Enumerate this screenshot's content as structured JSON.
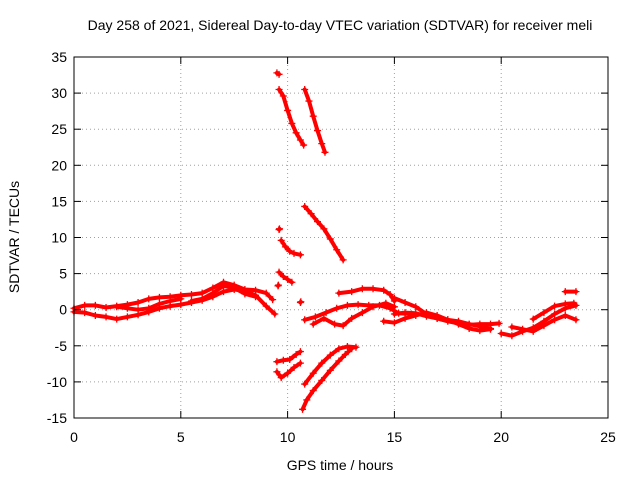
{
  "chart_data": {
    "type": "scatter",
    "title": "Day 258 of 2021, Sidereal Day-to-day VTEC variation (SDTVAR) for receiver meli",
    "xlabel": "GPS time / hours",
    "ylabel": "SDTVAR / TECUs",
    "xlim": [
      0,
      25
    ],
    "ylim": [
      -15,
      35
    ],
    "xticks": [
      0,
      5,
      10,
      15,
      20,
      25
    ],
    "yticks": [
      -15,
      -10,
      -5,
      0,
      5,
      10,
      15,
      20,
      25,
      30,
      35
    ],
    "grid": true,
    "legend": "none",
    "marker": "+",
    "color": "#ff0000",
    "tracks": [
      {
        "name": "track-1",
        "points": [
          [
            0.0,
            0.2
          ],
          [
            0.5,
            0.6
          ],
          [
            1.0,
            0.6
          ],
          [
            1.5,
            0.3
          ],
          [
            2.0,
            0.5
          ],
          [
            2.5,
            0.7
          ],
          [
            3.0,
            1.0
          ],
          [
            3.5,
            1.5
          ],
          [
            4.0,
            1.7
          ],
          [
            4.5,
            1.8
          ],
          [
            5.0,
            2.0
          ],
          [
            5.5,
            2.1
          ],
          [
            6.0,
            2.3
          ],
          [
            6.5,
            3.0
          ],
          [
            7.0,
            3.8
          ],
          [
            7.5,
            3.4
          ],
          [
            8.0,
            2.8
          ],
          [
            8.5,
            2.7
          ],
          [
            9.0,
            2.3
          ],
          [
            9.3,
            1.4
          ]
        ]
      },
      {
        "name": "track-2",
        "points": [
          [
            0.0,
            -0.3
          ],
          [
            0.5,
            -0.4
          ],
          [
            1.0,
            -0.8
          ],
          [
            1.5,
            -1.0
          ],
          [
            2.0,
            -1.3
          ],
          [
            2.5,
            -1.0
          ],
          [
            3.0,
            -0.7
          ],
          [
            3.5,
            -0.3
          ],
          [
            4.0,
            0.2
          ],
          [
            4.5,
            0.5
          ],
          [
            5.0,
            0.7
          ],
          [
            5.5,
            1.0
          ],
          [
            6.0,
            1.3
          ],
          [
            6.5,
            1.8
          ],
          [
            7.0,
            2.5
          ],
          [
            7.5,
            2.8
          ],
          [
            8.0,
            2.6
          ],
          [
            8.5,
            2.0
          ],
          [
            9.0,
            0.5
          ],
          [
            9.4,
            -0.6
          ]
        ]
      },
      {
        "name": "track-3",
        "points": [
          [
            2.0,
            0.4
          ],
          [
            2.5,
            0.2
          ],
          [
            3.0,
            0.0
          ],
          [
            3.5,
            0.2
          ],
          [
            4.0,
            0.8
          ],
          [
            4.5,
            1.2
          ],
          [
            5.0,
            1.5
          ]
        ]
      },
      {
        "name": "track-4",
        "points": [
          [
            5.5,
            1.2
          ],
          [
            6.0,
            1.5
          ],
          [
            6.5,
            2.3
          ],
          [
            7.0,
            3.3
          ],
          [
            7.5,
            3.0
          ],
          [
            8.0,
            2.2
          ],
          [
            8.5,
            1.8
          ]
        ]
      },
      {
        "name": "track-5",
        "points": [
          [
            9.5,
            32.8
          ],
          [
            9.6,
            32.6
          ]
        ]
      },
      {
        "name": "track-6",
        "points": [
          [
            9.6,
            30.5
          ],
          [
            9.8,
            29.6
          ],
          [
            10.0,
            27.6
          ],
          [
            10.2,
            25.8
          ],
          [
            10.4,
            24.5
          ],
          [
            10.6,
            23.5
          ],
          [
            10.75,
            22.8
          ]
        ]
      },
      {
        "name": "track-7",
        "points": [
          [
            10.8,
            30.5
          ],
          [
            11.0,
            28.9
          ],
          [
            11.2,
            26.8
          ],
          [
            11.4,
            24.8
          ],
          [
            11.6,
            23.0
          ],
          [
            11.75,
            21.8
          ]
        ]
      },
      {
        "name": "track-8",
        "points": [
          [
            9.6,
            11.1
          ],
          [
            9.62,
            11.2
          ]
        ]
      },
      {
        "name": "track-9",
        "points": [
          [
            9.7,
            9.6
          ],
          [
            9.9,
            8.7
          ],
          [
            10.1,
            8.1
          ],
          [
            10.3,
            7.8
          ],
          [
            10.6,
            7.6
          ]
        ]
      },
      {
        "name": "track-10",
        "points": [
          [
            10.8,
            14.3
          ],
          [
            11.1,
            13.3
          ],
          [
            11.4,
            12.2
          ],
          [
            11.7,
            11.2
          ],
          [
            12.0,
            9.8
          ],
          [
            12.3,
            8.3
          ],
          [
            12.6,
            6.9
          ]
        ]
      },
      {
        "name": "track-11",
        "points": [
          [
            9.6,
            5.2
          ],
          [
            9.8,
            4.6
          ],
          [
            10.0,
            4.2
          ],
          [
            10.2,
            3.8
          ]
        ]
      },
      {
        "name": "track-12",
        "points": [
          [
            9.55,
            3.3
          ],
          [
            9.57,
            3.4
          ]
        ]
      },
      {
        "name": "track-13",
        "points": [
          [
            10.6,
            1.0
          ],
          [
            10.62,
            1.1
          ]
        ]
      },
      {
        "name": "track-14",
        "points": [
          [
            10.8,
            -1.4
          ],
          [
            11.3,
            -1.0
          ],
          [
            11.8,
            -0.4
          ],
          [
            12.3,
            0.2
          ],
          [
            12.8,
            0.6
          ],
          [
            13.3,
            0.7
          ],
          [
            13.8,
            0.6
          ],
          [
            14.3,
            0.6
          ],
          [
            14.8,
            0.2
          ],
          [
            15.2,
            -0.5
          ],
          [
            15.8,
            -0.6
          ]
        ]
      },
      {
        "name": "track-15",
        "points": [
          [
            11.2,
            -2.0
          ],
          [
            11.7,
            -1.2
          ],
          [
            12.2,
            -2.0
          ],
          [
            12.6,
            -2.2
          ],
          [
            13.0,
            -1.2
          ],
          [
            13.5,
            -0.4
          ],
          [
            14.0,
            0.4
          ],
          [
            14.6,
            0.9
          ],
          [
            15.0,
            0.4
          ]
        ]
      },
      {
        "name": "track-16",
        "points": [
          [
            12.4,
            2.3
          ],
          [
            13.0,
            2.5
          ],
          [
            13.5,
            2.9
          ],
          [
            14.0,
            2.9
          ],
          [
            14.5,
            2.7
          ],
          [
            14.8,
            2.1
          ],
          [
            15.0,
            1.2
          ]
        ]
      },
      {
        "name": "track-17",
        "points": [
          [
            9.5,
            -7.2
          ],
          [
            9.8,
            -7.0
          ],
          [
            10.1,
            -6.9
          ],
          [
            10.4,
            -6.2
          ],
          [
            10.6,
            -5.8
          ]
        ]
      },
      {
        "name": "track-18",
        "points": [
          [
            9.5,
            -8.6
          ],
          [
            9.7,
            -9.4
          ],
          [
            10.0,
            -8.8
          ],
          [
            10.3,
            -8.0
          ],
          [
            10.6,
            -7.4
          ]
        ]
      },
      {
        "name": "track-19",
        "points": [
          [
            10.7,
            -13.8
          ],
          [
            10.9,
            -12.5
          ],
          [
            11.2,
            -11.2
          ],
          [
            11.6,
            -9.8
          ],
          [
            12.0,
            -8.4
          ],
          [
            12.4,
            -7.1
          ],
          [
            12.7,
            -6.2
          ],
          [
            13.0,
            -5.4
          ]
        ]
      },
      {
        "name": "track-20",
        "points": [
          [
            10.8,
            -10.3
          ],
          [
            11.2,
            -8.8
          ],
          [
            11.6,
            -7.4
          ],
          [
            12.0,
            -6.3
          ],
          [
            12.4,
            -5.4
          ],
          [
            12.8,
            -5.1
          ],
          [
            13.2,
            -5.2
          ]
        ]
      },
      {
        "name": "track-21",
        "points": [
          [
            15.0,
            -0.6
          ],
          [
            15.5,
            -0.4
          ],
          [
            16.0,
            -0.5
          ],
          [
            16.5,
            -0.9
          ],
          [
            17.0,
            -1.2
          ],
          [
            17.5,
            -1.4
          ],
          [
            18.0,
            -1.6
          ],
          [
            18.5,
            -2.0
          ],
          [
            19.0,
            -2.3
          ],
          [
            19.5,
            -2.6
          ]
        ]
      },
      {
        "name": "track-22",
        "points": [
          [
            14.5,
            -1.6
          ],
          [
            15.0,
            -1.8
          ],
          [
            15.5,
            -1.2
          ],
          [
            16.0,
            -0.8
          ],
          [
            16.5,
            -0.4
          ],
          [
            17.0,
            -0.8
          ],
          [
            17.5,
            -1.4
          ],
          [
            18.0,
            -2.0
          ],
          [
            18.5,
            -2.6
          ],
          [
            19.0,
            -2.9
          ],
          [
            19.5,
            -2.7
          ]
        ]
      },
      {
        "name": "track-23",
        "points": [
          [
            15.0,
            1.6
          ],
          [
            15.5,
            1.0
          ],
          [
            16.0,
            0.4
          ],
          [
            16.5,
            -0.6
          ],
          [
            17.0,
            -1.2
          ],
          [
            17.5,
            -1.6
          ],
          [
            18.0,
            -1.9
          ],
          [
            18.5,
            -2.1
          ],
          [
            19.0,
            -2.0
          ],
          [
            19.5,
            -2.0
          ],
          [
            19.9,
            -1.9
          ]
        ]
      },
      {
        "name": "track-24",
        "points": [
          [
            20.0,
            -3.3
          ],
          [
            20.5,
            -3.6
          ],
          [
            21.0,
            -3.0
          ],
          [
            21.5,
            -2.5
          ],
          [
            22.0,
            -1.6
          ],
          [
            22.5,
            -0.6
          ],
          [
            23.0,
            0.2
          ],
          [
            23.5,
            0.6
          ]
        ]
      },
      {
        "name": "track-25",
        "points": [
          [
            20.5,
            -2.4
          ],
          [
            21.0,
            -2.7
          ],
          [
            21.5,
            -3.0
          ],
          [
            22.0,
            -2.2
          ],
          [
            22.5,
            -1.4
          ],
          [
            23.0,
            -0.8
          ],
          [
            23.5,
            -1.4
          ]
        ]
      },
      {
        "name": "track-26",
        "points": [
          [
            21.5,
            -1.3
          ],
          [
            22.0,
            -0.4
          ],
          [
            22.5,
            0.5
          ],
          [
            23.0,
            0.8
          ],
          [
            23.4,
            0.9
          ]
        ]
      },
      {
        "name": "track-27",
        "points": [
          [
            23.0,
            2.5
          ],
          [
            23.5,
            2.5
          ]
        ]
      }
    ]
  }
}
